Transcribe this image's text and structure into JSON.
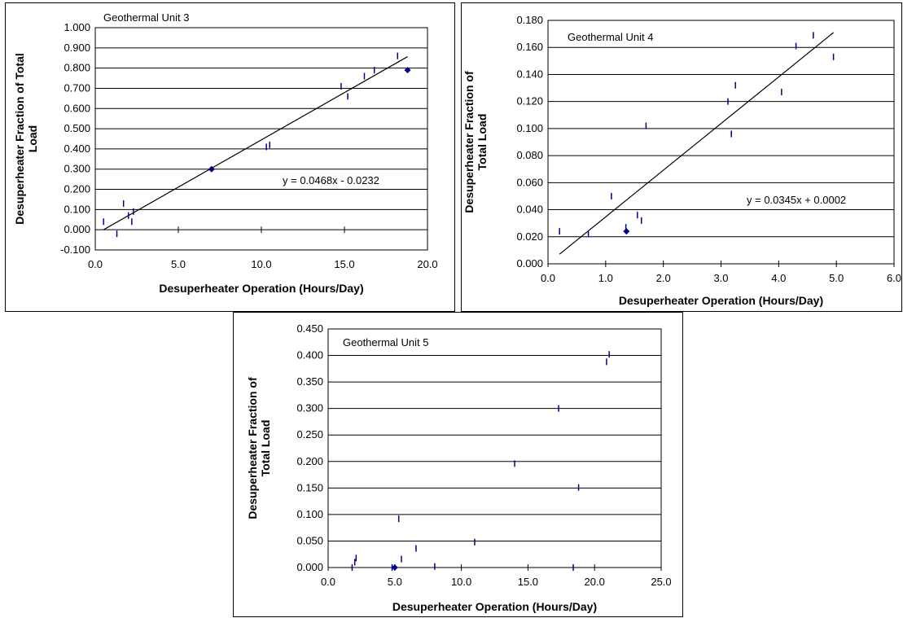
{
  "chart_data": [
    {
      "type": "scatter",
      "title": "Geothermal Unit 3",
      "xlabel": "Desuperheater Operation (Hours/Day)",
      "ylabel": "Desuperheater Fraction of Total Load",
      "xlim": [
        0,
        20
      ],
      "ylim": [
        -0.1,
        1.0
      ],
      "xticks": [
        "0.0",
        "5.0",
        "10.0",
        "15.0",
        "20.0"
      ],
      "yticks": [
        "-0.100",
        "0.000",
        "0.100",
        "0.200",
        "0.300",
        "0.400",
        "0.500",
        "0.600",
        "0.700",
        "0.800",
        "0.900",
        "1.000"
      ],
      "grid": "horizontal",
      "point_color": "#00008B",
      "trendline": {
        "slope": 0.0468,
        "intercept": -0.0232,
        "x_range": [
          0.5,
          18.8
        ]
      },
      "equation": "y = 0.0468x - 0.0232",
      "series": [
        {
          "x": [
            0.5,
            1.3,
            1.7,
            2.0,
            2.2,
            2.3,
            7.0,
            10.3,
            10.5,
            14.8,
            15.2,
            16.2,
            16.8,
            18.2,
            18.8
          ],
          "y": [
            0.04,
            -0.02,
            0.13,
            0.07,
            0.04,
            0.09,
            0.3,
            0.41,
            0.42,
            0.71,
            0.66,
            0.76,
            0.79,
            0.86,
            0.79
          ],
          "marker": [
            "tick",
            "tick",
            "tick",
            "tick",
            "tick",
            "tick",
            "diamond",
            "tick",
            "tick",
            "tick",
            "tick",
            "tick",
            "tick",
            "tick",
            "diamond"
          ]
        }
      ]
    },
    {
      "type": "scatter",
      "title": "Geothermal Unit 4",
      "xlabel": "Desuperheater Operation (Hours/Day)",
      "ylabel": "Desuperheater Fraction of Total Load",
      "xlim": [
        0,
        6
      ],
      "ylim": [
        0,
        0.18
      ],
      "xticks": [
        "0.0",
        "1.0",
        "2.0",
        "3.0",
        "4.0",
        "5.0",
        "6.0"
      ],
      "yticks": [
        "0.000",
        "0.020",
        "0.040",
        "0.060",
        "0.080",
        "0.100",
        "0.120",
        "0.140",
        "0.160",
        "0.180"
      ],
      "grid": "horizontal",
      "point_color": "#00008B",
      "trendline": {
        "slope": 0.0345,
        "intercept": 0.0002,
        "x_range": [
          0.2,
          4.95
        ]
      },
      "equation": "y = 0.0345x + 0.0002",
      "series": [
        {
          "x": [
            0.2,
            0.7,
            1.1,
            1.35,
            1.36,
            1.55,
            1.62,
            1.7,
            3.12,
            3.18,
            3.25,
            4.05,
            4.3,
            4.6,
            4.95
          ],
          "y": [
            0.024,
            0.022,
            0.05,
            0.027,
            0.024,
            0.036,
            0.032,
            0.102,
            0.12,
            0.096,
            0.132,
            0.127,
            0.161,
            0.169,
            0.153
          ],
          "marker": [
            "tick",
            "tick",
            "tick",
            "tick",
            "diamond",
            "tick",
            "tick",
            "tick",
            "tick",
            "tick",
            "tick",
            "tick",
            "tick",
            "tick",
            "tick"
          ]
        }
      ]
    },
    {
      "type": "scatter",
      "title": "Geothermal Unit 5",
      "xlabel": "Desuperheater Operation (Hours/Day)",
      "ylabel": "Desuperheater Fraction of Total Load",
      "xlim": [
        0,
        25
      ],
      "ylim": [
        0,
        0.45
      ],
      "xticks": [
        "0.0",
        "5.0",
        "10.0",
        "15.0",
        "20.0",
        "25.0"
      ],
      "yticks": [
        "0.000",
        "0.050",
        "0.100",
        "0.150",
        "0.200",
        "0.250",
        "0.300",
        "0.350",
        "0.400",
        "0.450"
      ],
      "grid": "horizontal",
      "point_color": "#00008B",
      "trendline": null,
      "equation": "",
      "series": [
        {
          "x": [
            1.8,
            2.0,
            2.1,
            4.8,
            5.0,
            5.3,
            5.5,
            6.6,
            8.0,
            11.0,
            14.0,
            17.3,
            18.4,
            18.8,
            20.9,
            21.1
          ],
          "y": [
            0.0,
            0.01,
            0.018,
            0.0,
            0.0,
            0.092,
            0.016,
            0.036,
            0.002,
            0.048,
            0.196,
            0.3,
            0.0,
            0.151,
            0.388,
            0.402
          ],
          "marker": [
            "tick",
            "tick",
            "tick",
            "tick",
            "diamond",
            "tick",
            "tick",
            "tick",
            "tick",
            "tick",
            "tick",
            "tick",
            "tick",
            "tick",
            "tick",
            "tick"
          ]
        }
      ]
    }
  ]
}
